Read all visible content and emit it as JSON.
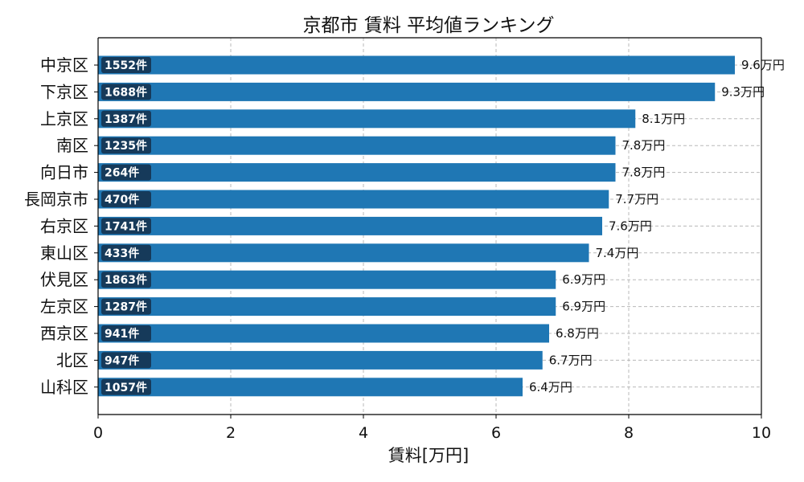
{
  "chart_data": {
    "type": "bar",
    "orientation": "horizontal",
    "title": "京都市 賃料 平均値ランキング",
    "xlabel": "賃料[万円]",
    "ylabel": "",
    "xlim": [
      0,
      10
    ],
    "xticks": [
      0,
      2,
      4,
      6,
      8,
      10
    ],
    "xtick_labels": [
      "0",
      "2",
      "4",
      "6",
      "8",
      "10"
    ],
    "grid": true,
    "categories": [
      "中京区",
      "下京区",
      "上京区",
      "南区",
      "向日市",
      "長岡京市",
      "右京区",
      "東山区",
      "伏見区",
      "左京区",
      "西京区",
      "北区",
      "山科区"
    ],
    "values": [
      9.6,
      9.3,
      8.1,
      7.8,
      7.8,
      7.7,
      7.6,
      7.4,
      6.9,
      6.9,
      6.8,
      6.7,
      6.4
    ],
    "value_labels": [
      "9.6万円",
      "9.3万円",
      "8.1万円",
      "7.8万円",
      "7.8万円",
      "7.7万円",
      "7.6万円",
      "7.4万円",
      "6.9万円",
      "6.9万円",
      "6.8万円",
      "6.7万円",
      "6.4万円"
    ],
    "count_labels": [
      "1552件",
      "1688件",
      "1387件",
      "1235件",
      "264件",
      "470件",
      "1741件",
      "433件",
      "1863件",
      "1287件",
      "941件",
      "947件",
      "1057件"
    ],
    "colors": {
      "bar": "#1f77b4",
      "count_badge": "#163a5a",
      "grid": "#b8b8b8",
      "axis": "#000000"
    }
  }
}
